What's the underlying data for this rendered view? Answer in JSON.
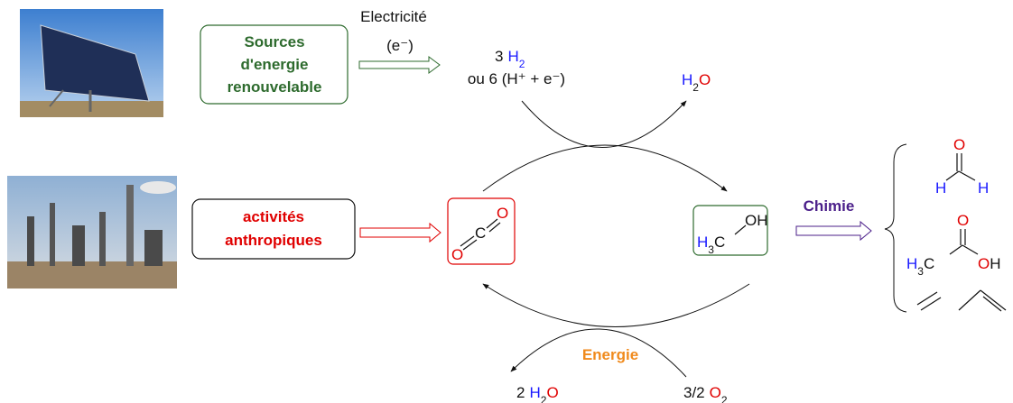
{
  "renewable_sources": {
    "lines": [
      "Sources",
      "d'energie",
      "renouvelable"
    ]
  },
  "electricity": {
    "label": "Electricité",
    "charge": "(e⁻)"
  },
  "hydrogen": {
    "coef": "3",
    "atom": "H",
    "sub": "2",
    "alt": "ou 6 (H⁺ + e⁻)"
  },
  "water_top": {
    "h": "H",
    "sub": "2",
    "o": "O"
  },
  "anthropic": {
    "lines": [
      "activités",
      "anthropiques"
    ]
  },
  "co2": {
    "atoms": [
      "O",
      "C",
      "O"
    ]
  },
  "methanol": {
    "h": "H",
    "sub": "3",
    "c": "C",
    "oh": "OH"
  },
  "chemistry": "Chimie",
  "formaldehyde": {
    "o": "O",
    "h_left": "H",
    "h_right": "H"
  },
  "acetic_acid": {
    "o": "O",
    "h": "H",
    "sub": "3",
    "c": "C",
    "oh_o": "O",
    "oh_h": "H"
  },
  "energy": "Energie",
  "water_bottom": {
    "coef": "2",
    "h": "H",
    "sub": "2",
    "o": "O"
  },
  "oxygen": {
    "coef": "3/2",
    "o": "O",
    "sub": "2"
  }
}
